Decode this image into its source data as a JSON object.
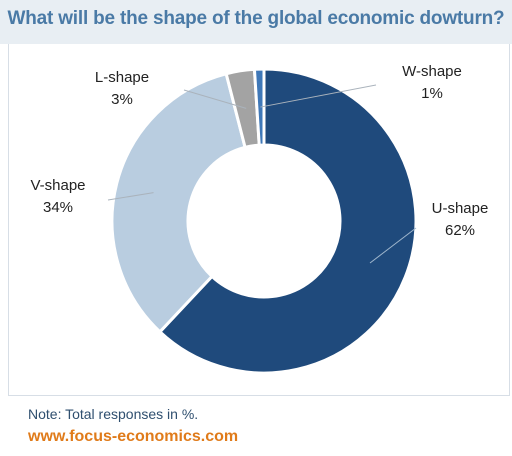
{
  "chart_data": {
    "type": "pie",
    "title": "What will be the shape of the global economic dowturn?",
    "categories": [
      "U-shape",
      "V-shape",
      "L-shape",
      "W-shape"
    ],
    "values": [
      62,
      34,
      3,
      1
    ],
    "value_labels": [
      "62%",
      "34%",
      "3%",
      "1%"
    ],
    "colors": [
      "#1f4a7c",
      "#b9cde0",
      "#a3a3a3",
      "#3f78b8"
    ],
    "hole": 0.5
  },
  "footer": {
    "note": "Note: Total responses in %.",
    "brand": "www.focus-economics.com"
  }
}
